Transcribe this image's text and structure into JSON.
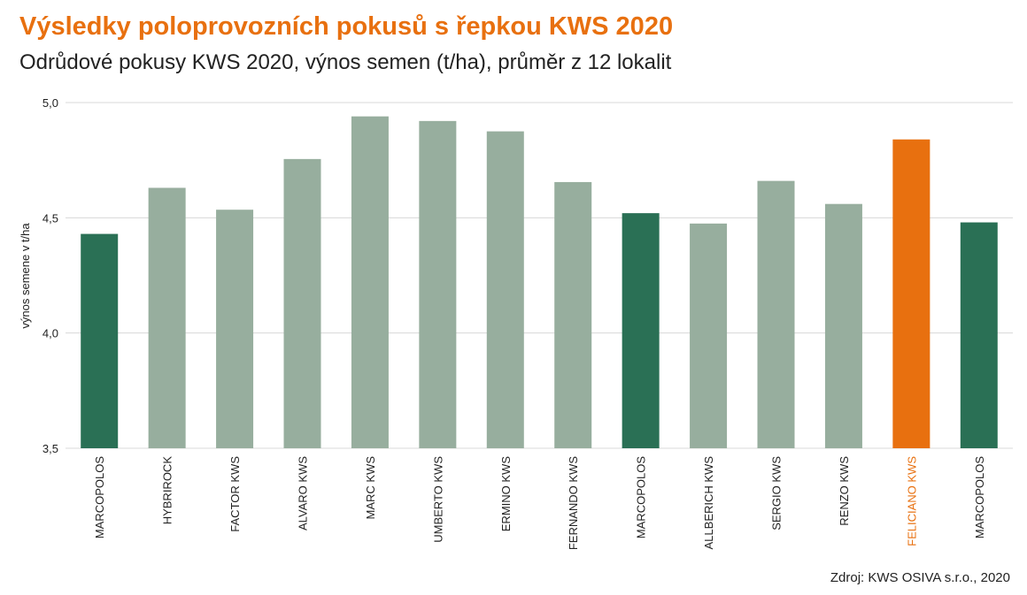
{
  "title": "Výsledky poloprovozních pokusů s řepkou KWS 2020",
  "subtitle": "Odrůdové pokusy KWS 2020, výnos semen (t/ha), průměr z 12 lokalit",
  "source": "Zdroj: KWS OSIVA s.r.o., 2020",
  "colors": {
    "dark_green": "#2a7055",
    "light_green": "#97ae9e",
    "orange": "#e8700f",
    "grid": "#d8d8d8",
    "text": "#222222"
  },
  "chart_data": {
    "type": "bar",
    "ylabel": "výnos semene v t/ha",
    "xlabel": "",
    "ylim": [
      3.5,
      5.0
    ],
    "yticks": [
      "3,5",
      "4,0",
      "4,5",
      "5,0"
    ],
    "grid": true,
    "categories": [
      "MARCOPOLOS",
      "HYBRIROCK",
      "FACTOR KWS",
      "ALVARO KWS",
      "MARC KWS",
      "UMBERTO KWS",
      "ERMINO KWS",
      "FERNANDO KWS",
      "MARCOPOLOS",
      "ALLBERICH KWS",
      "SERGIO KWS",
      "RENZO KWS",
      "FELICIANO KWS",
      "MARCOPOLOS"
    ],
    "values": [
      4.43,
      4.63,
      4.535,
      4.755,
      4.94,
      4.92,
      4.875,
      4.655,
      4.52,
      4.475,
      4.66,
      4.56,
      4.84,
      4.48
    ],
    "bar_colors": [
      "dark_green",
      "light_green",
      "light_green",
      "light_green",
      "light_green",
      "light_green",
      "light_green",
      "light_green",
      "dark_green",
      "light_green",
      "light_green",
      "light_green",
      "orange",
      "dark_green"
    ],
    "highlight_label": "FELICIANO KWS"
  }
}
